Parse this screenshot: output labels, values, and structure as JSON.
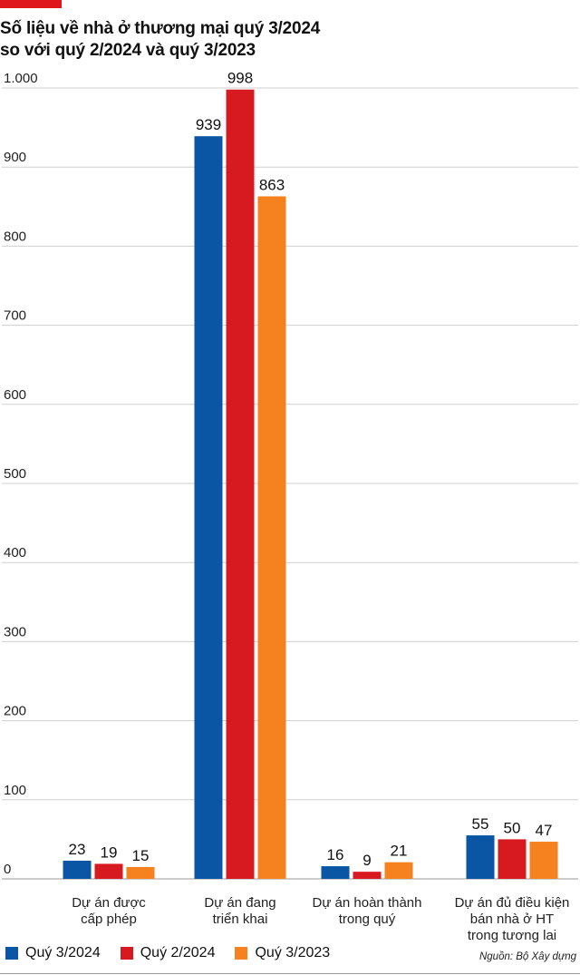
{
  "chart_data": {
    "type": "bar",
    "title": [
      "Số liệu về nhà ở thương mại quý 3/2024",
      "so với quý 2/2024 và quý 3/2023"
    ],
    "categories": [
      [
        "Dự án được",
        "cấp phép"
      ],
      [
        "Dự án đang",
        "triển khai"
      ],
      [
        "Dự án hoàn thành",
        "trong quý"
      ],
      [
        "Dự án đủ điều kiện",
        "bán nhà ở HT",
        "trong tương lai"
      ]
    ],
    "series": [
      {
        "name": "Quý 3/2024",
        "color": "#0a56a5",
        "values": [
          23,
          939,
          16,
          55
        ]
      },
      {
        "name": "Quý 2/2024",
        "color": "#d71920",
        "values": [
          19,
          998,
          9,
          50
        ]
      },
      {
        "name": "Quý 3/2023",
        "color": "#f5821f",
        "values": [
          15,
          863,
          21,
          47
        ]
      }
    ],
    "y_ticks": [
      0,
      100,
      200,
      300,
      400,
      500,
      600,
      700,
      800,
      900,
      1000
    ],
    "y_tick_labels": [
      "0",
      "100",
      "200",
      "300",
      "400",
      "500",
      "600",
      "700",
      "800",
      "900",
      "1.000"
    ],
    "ylim": [
      0,
      1000
    ],
    "grid": true,
    "legend_position": "bottom-left",
    "source": "Nguồn: Bộ Xây dựng"
  },
  "colors": {
    "accent": "#e0161d",
    "grid": "#cfcfcf"
  }
}
